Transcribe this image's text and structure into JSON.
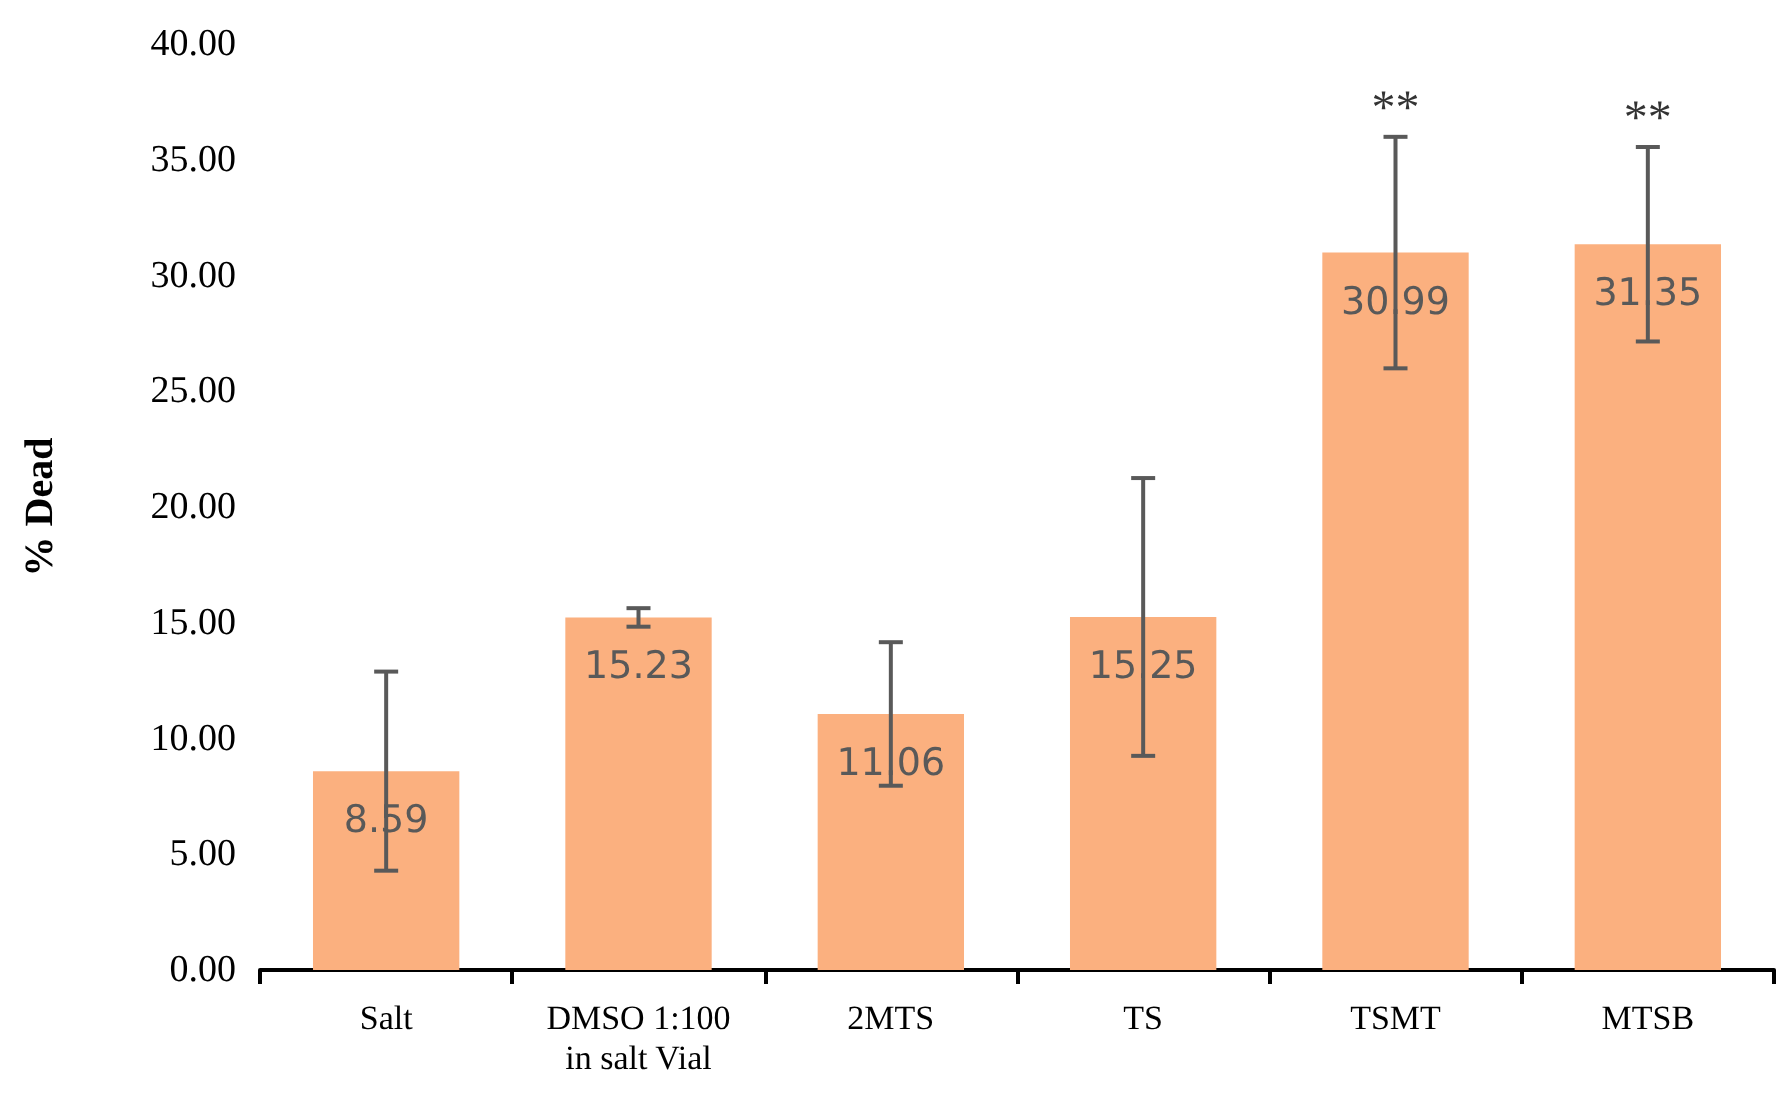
{
  "chart_data": {
    "type": "bar",
    "ylabel": "% Dead",
    "categories": [
      "Salt",
      "DMSO 1:100\nin salt Vial",
      "2MTS",
      "TS",
      "TSMT",
      "MTSB"
    ],
    "values": [
      8.59,
      15.23,
      11.06,
      15.25,
      30.99,
      31.35
    ],
    "errors": [
      4.3,
      0.4,
      3.1,
      6.0,
      5.0,
      4.2
    ],
    "color": "#fbb07f",
    "data_labels": true,
    "grid": false,
    "ylim": [
      0,
      40
    ],
    "yticks": [
      {
        "value": 0,
        "label": "0.00"
      },
      {
        "value": 5,
        "label": "5.00"
      },
      {
        "value": 10,
        "label": "10.00"
      },
      {
        "value": 15,
        "label": "15.00"
      },
      {
        "value": 20,
        "label": "20.00"
      },
      {
        "value": 25,
        "label": "25.00"
      },
      {
        "value": 30,
        "label": "30.00"
      },
      {
        "value": 35,
        "label": "35.00"
      },
      {
        "value": 40,
        "label": "40.00"
      }
    ],
    "annotations": [
      {
        "text": "**",
        "x": "TSMT",
        "y": 35.99
      },
      {
        "text": "**",
        "x": "MTSB",
        "y": 35.55
      }
    ]
  }
}
